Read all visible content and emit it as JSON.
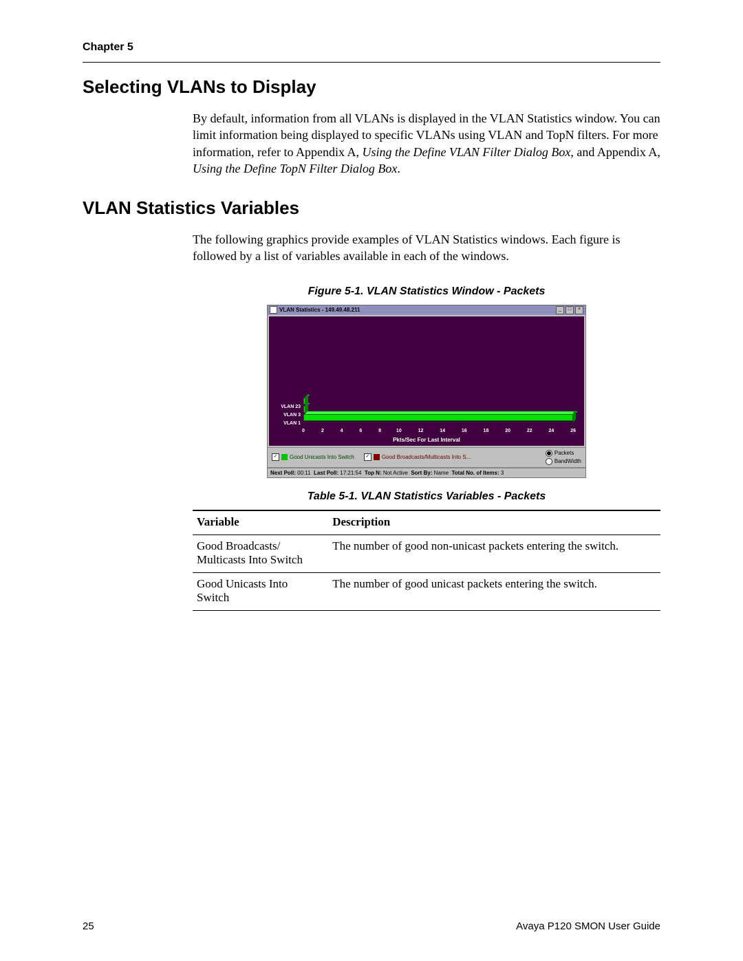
{
  "header": {
    "chapter_label": "Chapter 5"
  },
  "section1": {
    "title": "Selecting VLANs to Display",
    "para_before_em1": "By default, information from all VLANs is displayed in the VLAN Statistics window. You can limit information being displayed to specific VLANs using VLAN and TopN filters. For more information, refer to Appendix A, ",
    "em1": "Using the Define VLAN Filter Dialog Box",
    "mid": ", and Appendix A, ",
    "em2": "Using the Define TopN Filter Dialog Box",
    "after": "."
  },
  "section2": {
    "title": "VLAN Statistics Variables",
    "para": "The following graphics provide examples of VLAN Statistics windows. Each figure is followed by a list of variables available in each of the windows."
  },
  "figure": {
    "caption": "Figure 5-1.  VLAN Statistics Window - Packets",
    "window_title": "VLAN Statistics - 149.49.48.211",
    "chart": {
      "type": "horizontal_bar_3d",
      "background_color": "#400040",
      "bar_color": "#00e000",
      "bar_top_color": "#40ff40",
      "bar_side_color": "#008000",
      "categories": [
        "VLAN 23",
        "VLAN 3",
        "VLAN 1"
      ],
      "values": [
        0.2,
        0.2,
        25.5
      ],
      "xlim": [
        0,
        26
      ],
      "xticks": [
        0,
        2,
        4,
        6,
        8,
        10,
        12,
        14,
        16,
        18,
        20,
        22,
        24,
        26
      ],
      "x_title": "Pkts/Sec For Last Interval",
      "text_color": "#ffffff",
      "label_fontsize": 7
    },
    "legend": {
      "item1_label": "Good Unicasts Into Switch",
      "item1_checked": true,
      "item1_color": "#00c000",
      "item2_label": "Good Broadcasts/Multicasts Into S...",
      "item2_checked": true,
      "item2_color": "#800000",
      "radio1_label": "Packets",
      "radio1_selected": true,
      "radio2_label": "BandWidth",
      "radio2_selected": false
    },
    "status": {
      "k1": "Next Poll:",
      "v1": "00:11",
      "k2": "Last Poll:",
      "v2": "17:21:54",
      "k3": "Top N:",
      "v3": "Not Active",
      "k4": "Sort By:",
      "v4": "Name",
      "k5": "Total No. of Items:",
      "v5": "3"
    }
  },
  "table": {
    "caption": "Table 5-1.  VLAN Statistics Variables - Packets",
    "head_variable": "Variable",
    "head_description": "Description",
    "rows": [
      {
        "variable": "Good Broadcasts/ Multicasts Into Switch",
        "description": "The number of good non-unicast packets entering the switch."
      },
      {
        "variable": "Good Unicasts Into Switch",
        "description": "The number of good unicast packets entering the switch."
      }
    ]
  },
  "footer": {
    "page_number": "25",
    "doc_title": "Avaya P120 SMON User Guide"
  }
}
